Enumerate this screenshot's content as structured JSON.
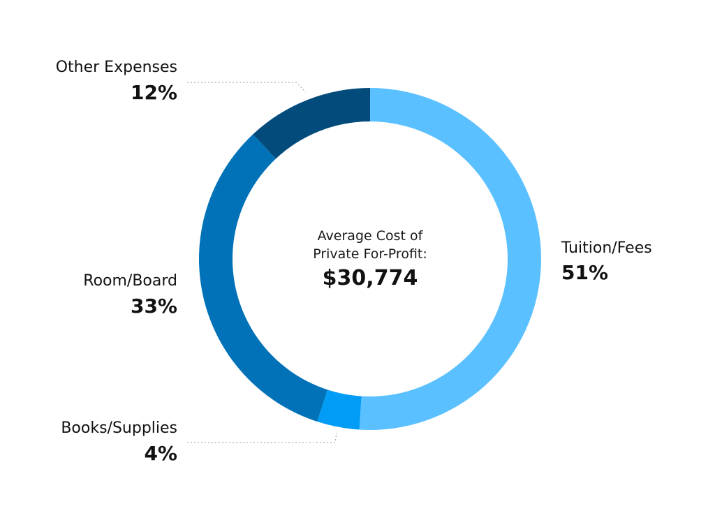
{
  "chart_data": {
    "type": "pie",
    "variant": "donut",
    "center_label_lines": [
      "Average Cost of",
      "Private For-Profit:"
    ],
    "center_value": "$30,774",
    "categories": [
      "Tuition/Fees",
      "Books/Supplies",
      "Room/Board",
      "Other Expenses"
    ],
    "values": [
      51,
      4,
      33,
      12
    ],
    "value_labels": [
      "51%",
      "4%",
      "33%",
      "12%"
    ],
    "unit": "%",
    "colors": [
      "#5bc0ff",
      "#009cf5",
      "#0172b7",
      "#024b7b"
    ],
    "start": "top",
    "direction": "clockwise"
  }
}
